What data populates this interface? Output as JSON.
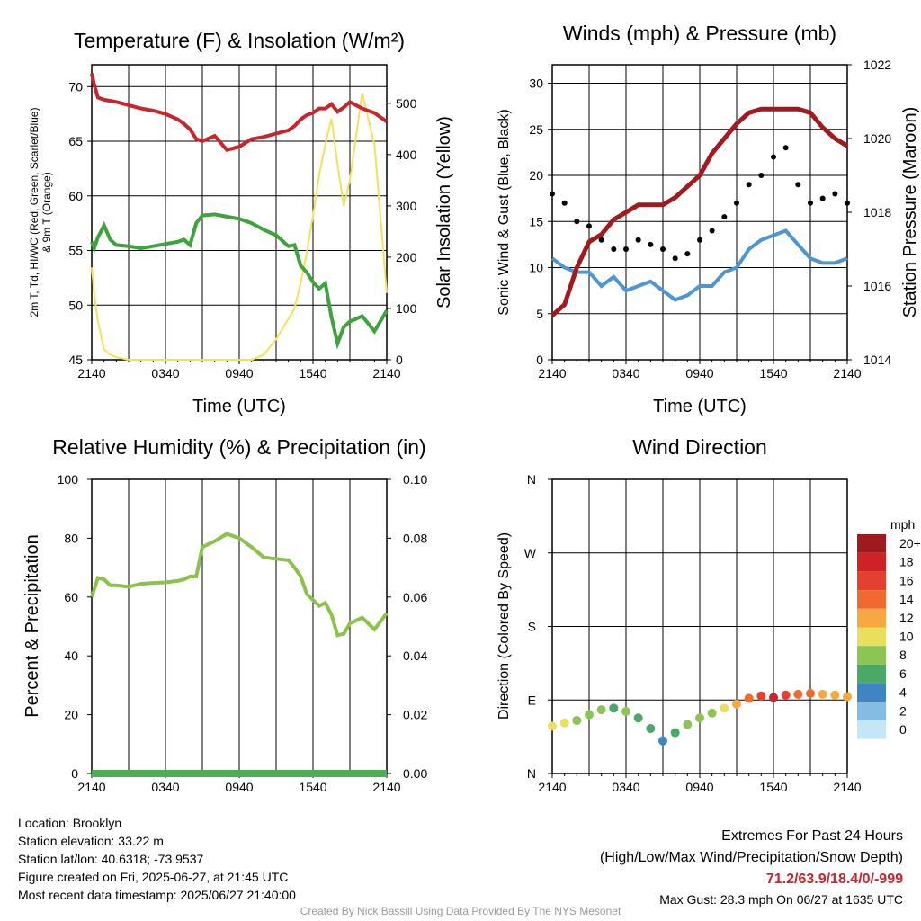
{
  "colors": {
    "temperature": "#c8252c",
    "dewpoint": "#3ea33c",
    "insolation": "#f5e05a",
    "wind": "#4e96d2",
    "gust": "#000000",
    "pressure": "#a3191d",
    "humidity": "#8bc34a",
    "precip": "#4caf50",
    "grid": "#000000"
  },
  "time_ticks": [
    "2140",
    "0340",
    "0940",
    "1540",
    "2140"
  ],
  "chart_data": [
    {
      "id": "temp",
      "type": "line",
      "title": "Temperature (F) & Insolation (W/m²)",
      "xlabel": "Time (UTC)",
      "ylabel_left": "2m T, Td, HI/WC (Red, Green, Scarlet/Blue) & 9m T (Orange)",
      "ylabel_right": "Solar Insolation (Yellow)",
      "ylim_left": [
        45,
        72
      ],
      "yticks_left": [
        45,
        50,
        55,
        60,
        65,
        70
      ],
      "ylim_right": [
        0,
        575
      ],
      "yticks_right": [
        0,
        100,
        200,
        300,
        400,
        500
      ],
      "grid": true,
      "x_hours": [
        0,
        0.2,
        0.5,
        1,
        1.5,
        2,
        3,
        4,
        5,
        6,
        7,
        7.5,
        8,
        8.5,
        9,
        10,
        11,
        12,
        13,
        14,
        15,
        16,
        16.5,
        17,
        17.5,
        18,
        18.5,
        19,
        19.5,
        20,
        20.5,
        21,
        22,
        23,
        24
      ],
      "series": [
        {
          "axis": "left",
          "color_key": "temperature",
          "values": [
            71.2,
            70.2,
            69,
            68.8,
            68.7,
            68.6,
            68.3,
            68,
            67.8,
            67.5,
            67,
            66.6,
            66.1,
            65.2,
            65,
            65.5,
            64.2,
            64.5,
            65.2,
            65.4,
            65.7,
            66,
            66.4,
            67,
            67.4,
            67.6,
            68,
            68,
            68.4,
            67.7,
            68.1,
            68.6,
            68,
            67.6,
            66.8
          ]
        },
        {
          "axis": "left",
          "color_key": "dewpoint",
          "values": [
            55.8,
            55.2,
            56.2,
            57.3,
            56,
            55.5,
            55.4,
            55.2,
            55.4,
            55.6,
            55.8,
            56,
            55.5,
            57.5,
            58.2,
            58.3,
            58.1,
            57.9,
            57.5,
            56.9,
            56.4,
            55.4,
            55.5,
            53.6,
            53,
            52.1,
            51.5,
            52,
            48.9,
            46.5,
            48,
            48.5,
            49,
            47.6,
            49.5
          ]
        },
        {
          "axis": "right",
          "color_key": "insolation",
          "values": [
            180,
            130,
            75,
            20,
            10,
            5,
            0,
            0,
            0,
            0,
            0,
            0,
            0,
            0,
            0,
            0,
            0,
            0,
            0,
            10,
            40,
            80,
            100,
            150,
            210,
            280,
            360,
            420,
            470,
            380,
            300,
            350,
            520,
            420,
            130
          ]
        }
      ]
    },
    {
      "id": "winds",
      "type": "line",
      "title": "Winds (mph) & Pressure (mb)",
      "xlabel": "Time (UTC)",
      "ylabel_left": "Sonic Wind & Gust (Blue, Black)",
      "ylabel_right": "Station Pressure (Maroon)",
      "ylim_left": [
        0,
        32
      ],
      "yticks_left": [
        0,
        5,
        10,
        15,
        20,
        25,
        30
      ],
      "ylim_right": [
        1014,
        1022
      ],
      "yticks_right": [
        1014,
        1016,
        1018,
        1020,
        1022
      ],
      "grid": true,
      "x_hours": [
        0,
        1,
        2,
        3,
        4,
        5,
        6,
        7,
        8,
        9,
        10,
        11,
        12,
        13,
        14,
        15,
        16,
        17,
        18,
        19,
        20,
        21,
        22,
        23,
        24
      ],
      "series": [
        {
          "axis": "left",
          "color_key": "wind",
          "kind": "line",
          "values": [
            11,
            10,
            9.5,
            9.5,
            8,
            9,
            7.5,
            8,
            8.5,
            7.5,
            6.5,
            7,
            8,
            8,
            9.5,
            10,
            12,
            13,
            13.5,
            14,
            12.5,
            11,
            10.5,
            10.5,
            11
          ]
        },
        {
          "axis": "left",
          "color_key": "gust",
          "kind": "points",
          "values": [
            18,
            17,
            15,
            14.5,
            13,
            12,
            12,
            13,
            12.5,
            12,
            11,
            11.5,
            13,
            14,
            15.5,
            17,
            19,
            20,
            22,
            23,
            19,
            17,
            17.5,
            18,
            17
          ]
        },
        {
          "axis": "right",
          "color_key": "pressure",
          "kind": "line",
          "values": [
            1015.2,
            1015.5,
            1016.5,
            1017.2,
            1017.4,
            1017.8,
            1018.0,
            1018.2,
            1018.2,
            1018.2,
            1018.4,
            1018.7,
            1019.0,
            1019.6,
            1020.0,
            1020.4,
            1020.7,
            1020.8,
            1020.8,
            1020.8,
            1020.8,
            1020.7,
            1020.3,
            1020.0,
            1019.8
          ]
        }
      ]
    },
    {
      "id": "rh",
      "type": "line",
      "title": "Relative Humidity (%) & Precipitation (in)",
      "xlabel": "",
      "ylabel_left": "Percent & Precipitation",
      "ylim_left": [
        0,
        100
      ],
      "yticks_left": [
        0,
        20,
        40,
        60,
        80,
        100
      ],
      "ylim_right": [
        0,
        0.1
      ],
      "yticks_right": [
        "0.00",
        "0.02",
        "0.04",
        "0.06",
        "0.08",
        "0.10"
      ],
      "grid": true,
      "x_hours": [
        0,
        0.5,
        1,
        1.5,
        2,
        3,
        4,
        5,
        6,
        7,
        7.5,
        8,
        8.5,
        9,
        10,
        11,
        12,
        13,
        14,
        15,
        16,
        16.5,
        17,
        17.5,
        18,
        18.5,
        19,
        19.5,
        20,
        20.5,
        21,
        22,
        23,
        24
      ],
      "series": [
        {
          "axis": "left",
          "color_key": "humidity",
          "values": [
            60,
            66.5,
            66,
            64,
            64,
            63.5,
            64.5,
            64.8,
            65,
            65.5,
            66,
            67,
            67,
            77,
            79,
            81.5,
            80,
            77,
            73.5,
            73,
            72.5,
            70,
            67,
            61,
            59,
            57,
            58,
            54,
            47,
            47.5,
            51,
            53,
            49,
            54.5
          ]
        },
        {
          "axis": "right",
          "color_key": "precip",
          "values": [
            0,
            0,
            0,
            0,
            0,
            0,
            0,
            0,
            0,
            0,
            0,
            0,
            0,
            0,
            0,
            0,
            0,
            0,
            0,
            0,
            0,
            0,
            0,
            0,
            0,
            0,
            0,
            0,
            0,
            0,
            0,
            0,
            0,
            0
          ]
        }
      ]
    },
    {
      "id": "wdir",
      "type": "scatter",
      "title": "Wind Direction",
      "xlabel": "",
      "ylabel_left": "Direction (Colored By Speed)",
      "ylim_left": [
        0,
        360
      ],
      "yticks_left": [
        "N",
        "E",
        "S",
        "W",
        "N"
      ],
      "grid": true,
      "x_hours": [
        0,
        1,
        2,
        3,
        4,
        5,
        6,
        7,
        8,
        9,
        10,
        11,
        12,
        13,
        14,
        15,
        16,
        17,
        18,
        19,
        20,
        21,
        22,
        23,
        24
      ],
      "dir_deg": [
        58,
        62,
        65,
        72,
        78,
        80,
        76,
        68,
        55,
        40,
        50,
        60,
        68,
        74,
        80,
        85,
        92,
        95,
        93,
        96,
        97,
        98,
        97,
        96,
        94
      ],
      "speed_mph": [
        9,
        10,
        8,
        8,
        7,
        6,
        7,
        5,
        5,
        4,
        6,
        7,
        8,
        8,
        9,
        12,
        14,
        16,
        17,
        16,
        14,
        13,
        12,
        12,
        11
      ],
      "legend": {
        "title": "mph",
        "labels": [
          "20+",
          "18",
          "16",
          "14",
          "12",
          "10",
          "8",
          "6",
          "4",
          "2",
          "0"
        ],
        "colors": [
          "#9e1a1f",
          "#cf2227",
          "#e3402f",
          "#f06a30",
          "#f7a843",
          "#e8e05c",
          "#8dc553",
          "#4ca868",
          "#3f85c2",
          "#84bce4",
          "#c5e6f7"
        ]
      }
    }
  ],
  "info": {
    "location": "Location: Brooklyn",
    "elevation": "Station elevation: 33.22 m",
    "latlon": "Station lat/lon: 40.6318; -73.9537",
    "created": "Figure created on Fri, 2025-06-27, at 21:45 UTC",
    "latest": "Most recent data timestamp: 2025/06/27 21:40:00"
  },
  "extremes": {
    "heading": "Extremes For Past 24 Hours",
    "fields": "(High/Low/Max Wind/Precipitation/Snow Depth)",
    "values": "71.2/63.9/18.4/0/-999",
    "max_gust": "Max Gust: 28.3 mph On 06/27 at 1635 UTC"
  },
  "credit": "Created By Nick Bassill Using Data Provided By The NYS Mesonet"
}
